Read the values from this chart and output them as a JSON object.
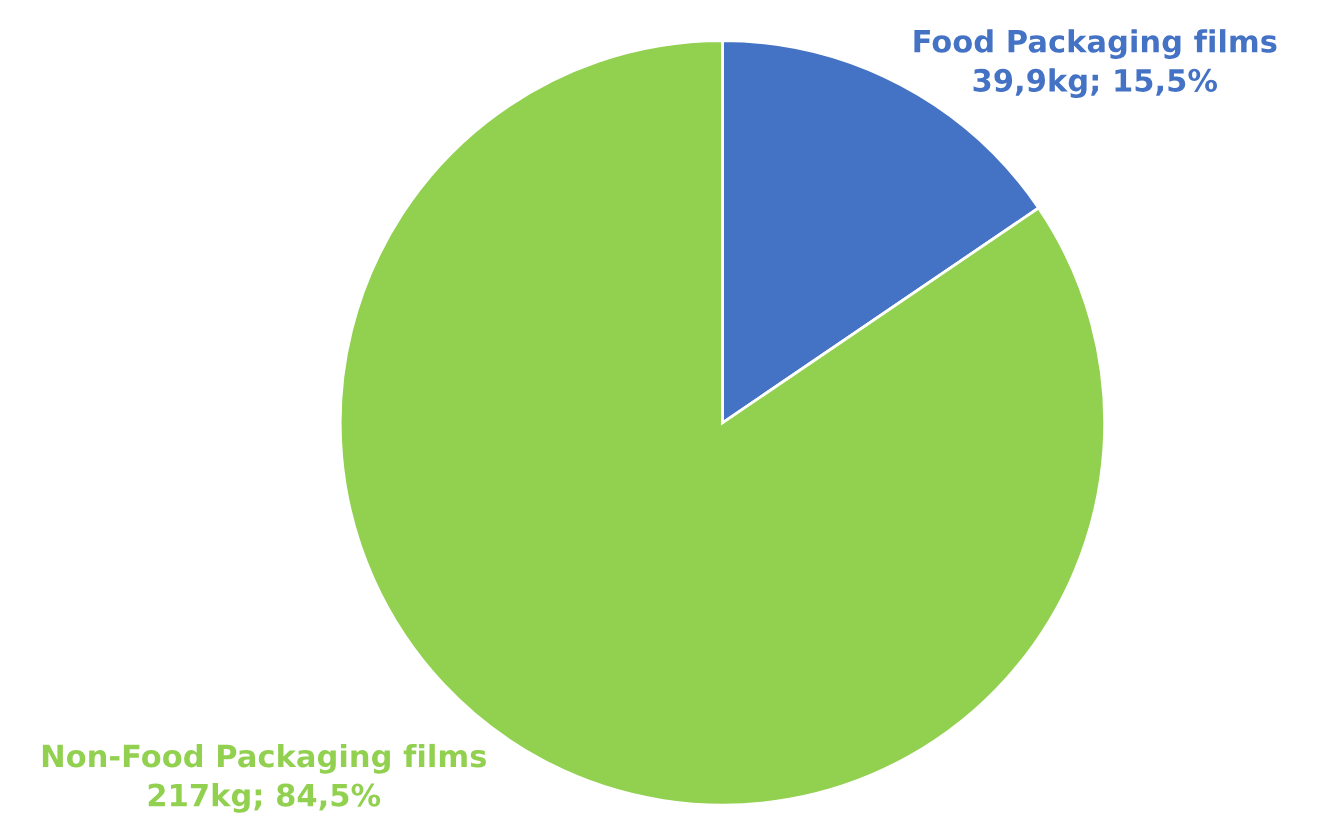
{
  "chart_data": {
    "type": "pie",
    "categories": [
      "Food Packaging films",
      "Non-Food Packaging films"
    ],
    "values": [
      15.5,
      84.5
    ],
    "value_labels": [
      "39,9kg; 15,5%",
      "217kg; 84,5%"
    ],
    "colors": [
      "#4472c4",
      "#92d050"
    ]
  }
}
